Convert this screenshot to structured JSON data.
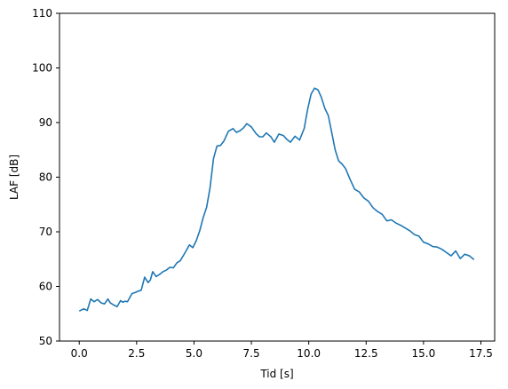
{
  "chart_data": {
    "type": "line",
    "title": "",
    "xlabel": "Tid [s]",
    "ylabel": "LAF [dB]",
    "xlim": [
      -0.86,
      18.1
    ],
    "ylim": [
      50,
      110
    ],
    "xticks": [
      0.0,
      2.5,
      5.0,
      7.5,
      10.0,
      12.5,
      15.0,
      17.5
    ],
    "xtick_labels": [
      "0.0",
      "2.5",
      "5.0",
      "7.5",
      "10.0",
      "12.5",
      "15.0",
      "17.5"
    ],
    "yticks": [
      50,
      60,
      70,
      80,
      90,
      100,
      110
    ],
    "ytick_labels": [
      "50",
      "60",
      "70",
      "80",
      "90",
      "100",
      "110"
    ],
    "grid": false,
    "series": [
      {
        "color": "#1f77b4",
        "x": [
          0.0,
          0.2,
          0.35,
          0.5,
          0.65,
          0.8,
          0.95,
          1.1,
          1.25,
          1.35,
          1.5,
          1.65,
          1.8,
          1.9,
          2.0,
          2.1,
          2.3,
          2.45,
          2.55,
          2.7,
          2.85,
          3.0,
          3.1,
          3.2,
          3.35,
          3.5,
          3.65,
          3.8,
          3.95,
          4.1,
          4.25,
          4.4,
          4.6,
          4.8,
          4.95,
          5.1,
          5.25,
          5.4,
          5.55,
          5.7,
          5.85,
          6.0,
          6.15,
          6.3,
          6.5,
          6.7,
          6.85,
          7.0,
          7.15,
          7.3,
          7.5,
          7.7,
          7.85,
          8.0,
          8.15,
          8.35,
          8.5,
          8.7,
          8.9,
          9.05,
          9.2,
          9.4,
          9.6,
          9.8,
          9.95,
          10.1,
          10.25,
          10.4,
          10.55,
          10.7,
          10.85,
          11.0,
          11.15,
          11.3,
          11.45,
          11.6,
          11.8,
          12.0,
          12.2,
          12.4,
          12.6,
          12.8,
          13.0,
          13.2,
          13.4,
          13.6,
          13.8,
          14.0,
          14.2,
          14.4,
          14.6,
          14.8,
          15.0,
          15.2,
          15.4,
          15.6,
          15.8,
          16.0,
          16.2,
          16.4,
          16.6,
          16.8,
          17.0,
          17.2
        ],
        "y": [
          55.5,
          55.9,
          55.6,
          57.7,
          57.2,
          57.6,
          57.0,
          56.8,
          57.7,
          57.0,
          56.6,
          56.3,
          57.4,
          57.1,
          57.3,
          57.2,
          58.7,
          58.9,
          59.1,
          59.3,
          61.7,
          60.7,
          61.2,
          62.7,
          61.8,
          62.2,
          62.7,
          63.0,
          63.5,
          63.4,
          64.3,
          64.7,
          66.1,
          67.6,
          67.1,
          68.4,
          70.2,
          72.6,
          74.5,
          78.1,
          83.4,
          85.7,
          85.8,
          86.6,
          88.4,
          88.9,
          88.2,
          88.5,
          89.0,
          89.8,
          89.2,
          88.0,
          87.4,
          87.4,
          88.1,
          87.4,
          86.4,
          87.9,
          87.6,
          86.9,
          86.4,
          87.5,
          86.8,
          88.9,
          92.4,
          95.2,
          96.3,
          96.0,
          94.6,
          92.6,
          91.3,
          88.2,
          85.0,
          83.0,
          82.4,
          81.6,
          79.6,
          77.8,
          77.3,
          76.2,
          75.6,
          74.4,
          73.7,
          73.2,
          72.0,
          72.2,
          71.6,
          71.2,
          70.7,
          70.2,
          69.5,
          69.2,
          68.1,
          67.8,
          67.3,
          67.2,
          66.8,
          66.2,
          65.6,
          66.5,
          65.1,
          65.9,
          65.6,
          64.9
        ]
      }
    ]
  }
}
